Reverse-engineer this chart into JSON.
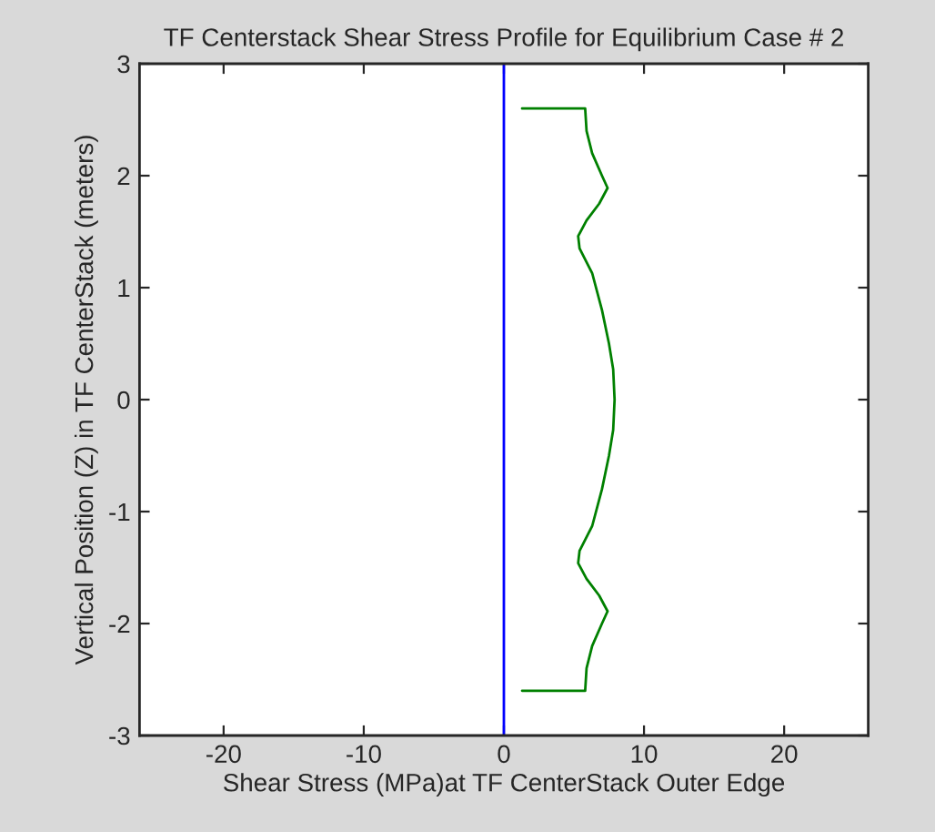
{
  "chart_data": {
    "type": "line",
    "title": "TF Centerstack Shear Stress Profile for Equilibrium Case # 2",
    "xlabel": "Shear Stress (MPa)at TF CenterStack Outer Edge",
    "ylabel": "Vertical Position (Z) in TF CenterStack (meters)",
    "xlim": [
      -26,
      26
    ],
    "xticks": [
      -20,
      -10,
      0,
      10,
      20
    ],
    "ylim": [
      -3,
      3
    ],
    "yticks": [
      -3,
      -2,
      -1,
      0,
      1,
      2,
      3
    ],
    "grid": false,
    "legend": false,
    "series": [
      {
        "color": "#008000",
        "x": [
          1.3,
          5.8,
          5.9,
          6.3,
          7.0,
          7.4,
          6.8,
          5.9,
          5.3,
          5.4,
          6.3,
          7.0,
          7.5,
          7.8,
          7.9,
          7.8,
          7.5,
          7.0,
          6.3,
          5.4,
          5.3,
          5.9,
          6.8,
          7.4,
          7.0,
          6.3,
          5.9,
          5.8,
          1.3
        ],
        "values": [
          2.6,
          2.6,
          2.4,
          2.2,
          2.0,
          1.89,
          1.75,
          1.6,
          1.46,
          1.35,
          1.13,
          0.8,
          0.5,
          0.27,
          0,
          -0.27,
          -0.5,
          -0.8,
          -1.13,
          -1.35,
          -1.46,
          -1.6,
          -1.75,
          -1.89,
          -2.0,
          -2.2,
          -2.4,
          -2.6,
          -2.6
        ]
      }
    ],
    "ref_lines": [
      {
        "axis": "x",
        "value": 0,
        "color": "#0000ff"
      }
    ]
  }
}
